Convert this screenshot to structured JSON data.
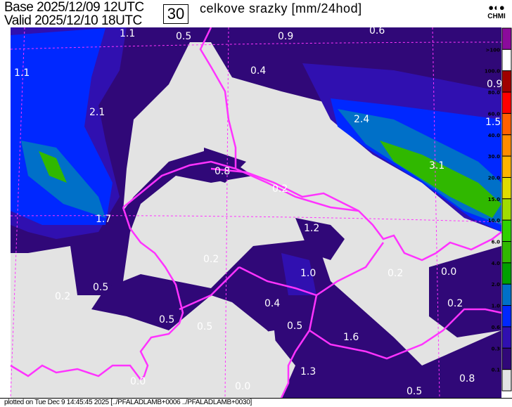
{
  "header": {
    "base": "Base 2025/12/09 12UTC",
    "valid": "Valid 2025/12/10 18UTC",
    "forecast_hour": "30",
    "title": "celkove srazky [mm/24hod]",
    "logo": "CHMI"
  },
  "footer": "plotted on Tue Dec  9 14:45:45 2025 [../PFALADLAMB+0006 ../PFALADLAMB+0030]",
  "map": {
    "background_color": "#e3e3e3",
    "border_color": "#ff33ff",
    "value_labels": [
      "1.1",
      "0.5",
      "0.9",
      "0.6",
      "1.1",
      "0.4",
      "2.1",
      "0.9",
      "2.4",
      "1.5",
      "3.1",
      "0.8",
      "0.2",
      "1.7",
      "1.2",
      "1.0",
      "0.2",
      "0.0",
      "0.2",
      "0.5",
      "0.2",
      "0.4",
      "0.2",
      "0.5",
      "0.5",
      "0.5",
      "1.6",
      "1.3",
      "0.0",
      "0.0",
      "0.8",
      "0.5"
    ]
  },
  "legend": {
    "labels": [
      ">100",
      "100.0",
      "80.0",
      "60.0",
      "40.0",
      "30.0",
      "20.0",
      "15.0",
      "10.0",
      "6.0",
      "4.0",
      "2.0",
      "1.0",
      "0.6",
      "0.3",
      "0.1"
    ],
    "colors": [
      "#8b0a9c",
      "#ffffff",
      "#a00000",
      "#ff0000",
      "#ff6000",
      "#ff8c00",
      "#ffb400",
      "#e0dc00",
      "#a0dc00",
      "#30d000",
      "#30b800",
      "#00a000",
      "#0070c8",
      "#0028ff",
      "#3010b0",
      "#300878",
      "#e3e3e3"
    ]
  }
}
